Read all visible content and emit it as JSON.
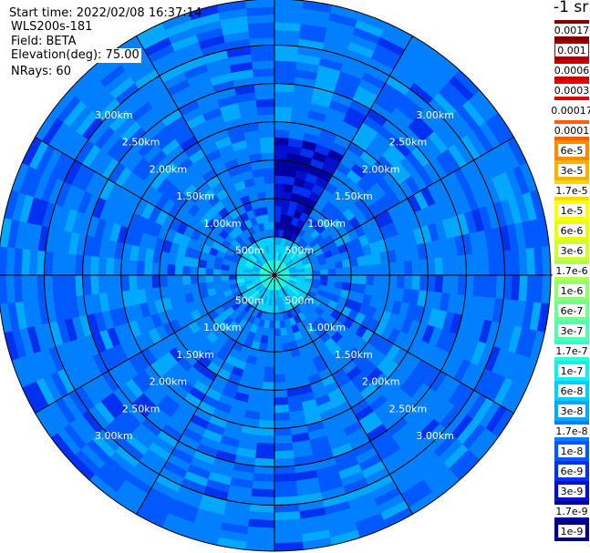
{
  "header": {
    "start_time": "Start time: 2022/02/08 16:37:14",
    "instrument": "WLS200s-181",
    "field": "Field: BETA",
    "elevation": "Elevation(deg): 75.00",
    "nrays": "NRays: 60"
  },
  "colorbar": {
    "unit_label": "-1 sr",
    "levels": [
      {
        "label": "0.0017",
        "color": "#800000"
      },
      {
        "label": "0.001",
        "color": "#a00000"
      },
      {
        "label": "0.0006",
        "color": "#c80000"
      },
      {
        "label": "0.0003",
        "color": "#e80000"
      },
      {
        "label": "0.00017",
        "color": "#ffffff"
      },
      {
        "label": "0.0001",
        "color": "#ff6000"
      },
      {
        "label": "6e-5",
        "color": "#ff8a00"
      },
      {
        "label": "3e-5",
        "color": "#ffb000"
      },
      {
        "label": "1.7e-5",
        "color": "#ffd800"
      },
      {
        "label": "1e-5",
        "color": "#ffff00"
      },
      {
        "label": "6e-6",
        "color": "#e8ff10"
      },
      {
        "label": "3e-6",
        "color": "#d0ff30"
      },
      {
        "label": "1.7e-6",
        "color": "#b0ff50"
      },
      {
        "label": "1e-6",
        "color": "#90ff70"
      },
      {
        "label": "6e-7",
        "color": "#70ff90"
      },
      {
        "label": "3e-7",
        "color": "#50ffb0"
      },
      {
        "label": "1.7e-7",
        "color": "#30ffd0"
      },
      {
        "label": "1e-7",
        "color": "#10f0f0"
      },
      {
        "label": "6e-8",
        "color": "#00d0ff"
      },
      {
        "label": "3e-8",
        "color": "#00a8ff"
      },
      {
        "label": "1.7e-8",
        "color": "#0080ff"
      },
      {
        "label": "1e-8",
        "color": "#0058ff"
      },
      {
        "label": "6e-9",
        "color": "#0030f0"
      },
      {
        "label": "3e-9",
        "color": "#0010d0"
      },
      {
        "label": "1.7e-9",
        "color": "#0000a0"
      },
      {
        "label": "1e-9",
        "color": "#000080"
      }
    ]
  },
  "chart_data": {
    "type": "heatmap",
    "projection": "polar PPI",
    "field": "BETA",
    "elevation_deg": 75.0,
    "nrays": 60,
    "range_rings_km": [
      0.5,
      1.0,
      1.5,
      2.0,
      2.5,
      3.0
    ],
    "ring_labels": [
      "500m",
      "1.00km",
      "1.50km",
      "2.00km",
      "2.50km",
      "3.00km"
    ],
    "spokes_deg": [
      0,
      30,
      60,
      90,
      120,
      150,
      180,
      210,
      240,
      270,
      300,
      330
    ],
    "dominant_values": {
      "within_0.2km": "1e-7 to 1.7e-7",
      "0.2km_to_0.5km": "6e-8",
      "beyond_0.5km": "3e-8 to 3e-9"
    },
    "notable_features": "sector of lowest values (1.7e-9 to 6e-9) from 0 to 30 deg azimuth between 0.1 and 1.8 km"
  }
}
